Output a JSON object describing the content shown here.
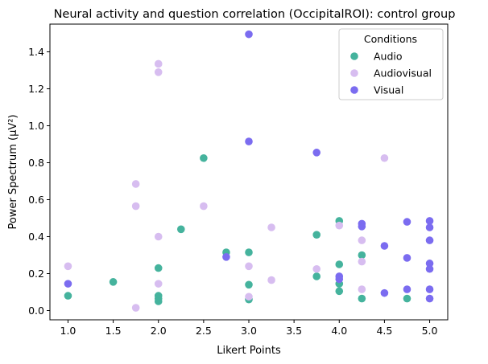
{
  "chart_data": {
    "type": "scatter",
    "title": "Neural activity and question correlation (OccipitalROI): control group",
    "xlabel": "Likert Points",
    "ylabel": "Power Spectrum (µV²)",
    "xlim": [
      0.8,
      5.2
    ],
    "ylim": [
      -0.05,
      1.55
    ],
    "xticks": [
      1.0,
      1.5,
      2.0,
      2.5,
      3.0,
      3.5,
      4.0,
      4.5,
      5.0
    ],
    "xtick_labels": [
      "1.0",
      "1.5",
      "2.0",
      "2.5",
      "3.0",
      "3.5",
      "4.0",
      "4.5",
      "5.0"
    ],
    "yticks": [
      0.0,
      0.2,
      0.4,
      0.6,
      0.8,
      1.0,
      1.2,
      1.4
    ],
    "ytick_labels": [
      "0.0",
      "0.2",
      "0.4",
      "0.6",
      "0.8",
      "1.0",
      "1.2",
      "1.4"
    ],
    "grid": false,
    "legend": {
      "title": "Conditions",
      "placement": "top-right"
    },
    "series": [
      {
        "name": "Audio",
        "color": "#45b39d",
        "points": [
          [
            1.0,
            0.08
          ],
          [
            1.5,
            0.155
          ],
          [
            2.0,
            0.23
          ],
          [
            2.0,
            0.08
          ],
          [
            2.0,
            0.065
          ],
          [
            2.0,
            0.05
          ],
          [
            2.25,
            0.44
          ],
          [
            2.5,
            0.825
          ],
          [
            2.75,
            0.315
          ],
          [
            3.0,
            0.315
          ],
          [
            3.0,
            0.14
          ],
          [
            3.0,
            0.06
          ],
          [
            3.75,
            0.41
          ],
          [
            3.75,
            0.185
          ],
          [
            4.0,
            0.485
          ],
          [
            4.0,
            0.25
          ],
          [
            4.0,
            0.145
          ],
          [
            4.0,
            0.105
          ],
          [
            4.25,
            0.3
          ],
          [
            4.25,
            0.065
          ],
          [
            4.75,
            0.065
          ]
        ]
      },
      {
        "name": "Audiovisual",
        "color": "#d7bdf0",
        "points": [
          [
            1.0,
            0.24
          ],
          [
            1.75,
            0.685
          ],
          [
            1.75,
            0.565
          ],
          [
            1.75,
            0.015
          ],
          [
            2.0,
            1.335
          ],
          [
            2.0,
            1.29
          ],
          [
            2.0,
            0.4
          ],
          [
            2.0,
            0.145
          ],
          [
            2.5,
            0.565
          ],
          [
            3.0,
            0.24
          ],
          [
            3.0,
            0.075
          ],
          [
            3.25,
            0.45
          ],
          [
            3.25,
            0.165
          ],
          [
            3.75,
            0.225
          ],
          [
            4.0,
            0.46
          ],
          [
            4.25,
            0.38
          ],
          [
            4.25,
            0.265
          ],
          [
            4.25,
            0.115
          ],
          [
            4.5,
            0.825
          ]
        ]
      },
      {
        "name": "Visual",
        "color": "#7b6cf0",
        "points": [
          [
            1.0,
            0.145
          ],
          [
            2.75,
            0.29
          ],
          [
            3.0,
            1.495
          ],
          [
            3.0,
            0.915
          ],
          [
            3.75,
            0.855
          ],
          [
            4.0,
            0.185
          ],
          [
            4.0,
            0.17
          ],
          [
            4.25,
            0.47
          ],
          [
            4.25,
            0.455
          ],
          [
            4.5,
            0.35
          ],
          [
            4.5,
            0.095
          ],
          [
            4.75,
            0.48
          ],
          [
            4.75,
            0.285
          ],
          [
            4.75,
            0.115
          ],
          [
            5.0,
            0.485
          ],
          [
            5.0,
            0.45
          ],
          [
            5.0,
            0.38
          ],
          [
            5.0,
            0.255
          ],
          [
            5.0,
            0.225
          ],
          [
            5.0,
            0.115
          ],
          [
            5.0,
            0.065
          ]
        ]
      }
    ]
  }
}
